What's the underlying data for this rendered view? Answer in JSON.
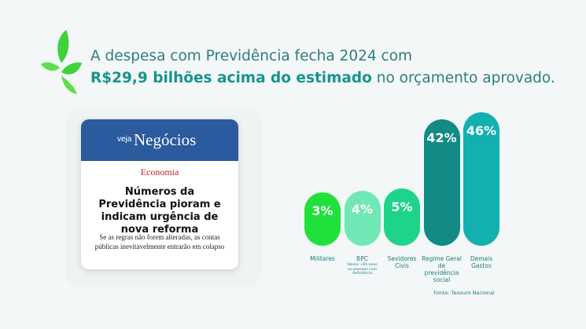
{
  "headline": {
    "line1": "A despesa com Previdência fecha 2024 com",
    "highlight": "R$29,9 bilhões acima do estimado",
    "rest": " no orçamento aprovado."
  },
  "card": {
    "brand_small": "veja",
    "brand": "Negócios",
    "section": "Economia",
    "title": "Números da Previdência pioram e indicam urgência de nova reforma",
    "summary": "Se as regras não forem alteradas, as contas públicas inevitavelmente entrarão em colapso"
  },
  "chart_data": {
    "type": "bar",
    "categories": [
      "Militares",
      "BPC",
      "Sevidores Civis",
      "Regime Geral de previdência social",
      "Demais Gastos"
    ],
    "sublabels": [
      null,
      "Idosos +65 anos ou pessoas com deficiência",
      null,
      null,
      null
    ],
    "values": [
      3,
      4,
      5,
      42,
      46
    ],
    "value_labels": [
      "3%",
      "4%",
      "5%",
      "42%",
      "46%"
    ],
    "colors": [
      "#22e03c",
      "#6fe8b6",
      "#1ed48b",
      "#128a86",
      "#14b0b0"
    ],
    "source": "Fonte: Tesouro Nacional"
  }
}
